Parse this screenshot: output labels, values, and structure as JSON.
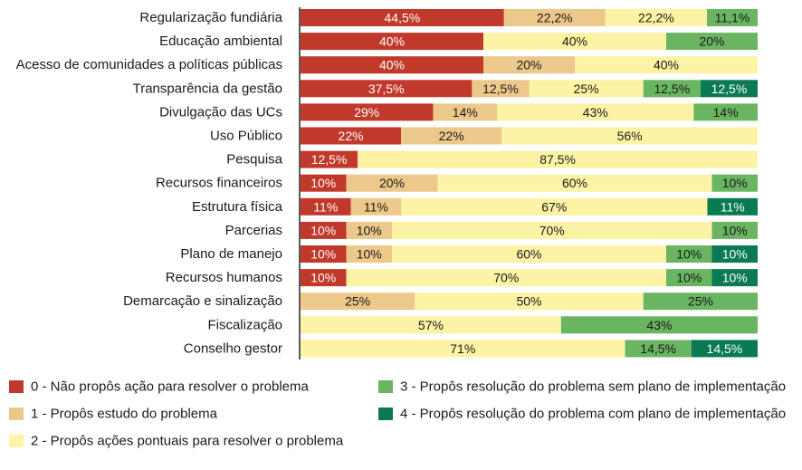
{
  "chart_data": {
    "type": "bar",
    "orientation": "horizontal",
    "stacked": true,
    "normalized_percent": true,
    "categories": [
      "Regularização fundiária",
      "Educação ambiental",
      "Acesso de comunidades a políticas públicas",
      "Transparência da gestão",
      "Divulgação das UCs",
      "Uso Público",
      "Pesquisa",
      "Recursos financeiros",
      "Estrutura física",
      "Parcerias",
      "Plano de manejo",
      "Recursos humanos",
      "Demarcação e sinalização",
      "Fiscalização",
      "Conselho gestor"
    ],
    "series": [
      {
        "name": "0 - Não propôs ação para resolver o problema",
        "color": "#c0392b",
        "values": [
          44.5,
          40,
          40,
          37.5,
          29,
          22,
          12.5,
          10,
          11,
          10,
          10,
          10,
          0,
          0,
          0
        ],
        "labels": [
          "44,5%",
          "40%",
          "40%",
          "37,5%",
          "29%",
          "22%",
          "12,5%",
          "10%",
          "11%",
          "10%",
          "10%",
          "10%",
          "",
          "",
          ""
        ]
      },
      {
        "name": "1 - Propôs estudo do problema",
        "color": "#ecc88a",
        "values": [
          22.2,
          0,
          20,
          12.5,
          14,
          22,
          0,
          20,
          11,
          10,
          10,
          0,
          25,
          0,
          0
        ],
        "labels": [
          "22,2%",
          "",
          "20%",
          "12,5%",
          "14%",
          "22%",
          "",
          "20%",
          "11%",
          "10%",
          "10%",
          "",
          "25%",
          "",
          ""
        ]
      },
      {
        "name": "2 - Propôs ações pontuais para resolver o problema",
        "color": "#fdf3a4",
        "values": [
          22.2,
          40,
          40,
          25,
          43,
          56,
          87.5,
          60,
          67,
          70,
          60,
          70,
          50,
          57,
          71
        ],
        "labels": [
          "22,2%",
          "40%",
          "40%",
          "25%",
          "43%",
          "56%",
          "87,5%",
          "60%",
          "67%",
          "70%",
          "60%",
          "70%",
          "50%",
          "57%",
          "71%"
        ]
      },
      {
        "name": "3 - Propôs resolução do problema sem plano de implementação",
        "color": "#6ab561",
        "values": [
          11.1,
          20,
          0,
          12.5,
          14,
          0,
          0,
          10,
          0,
          10,
          10,
          10,
          25,
          43,
          14.5
        ],
        "labels": [
          "11,1%",
          "20%",
          "",
          "12,5%",
          "14%",
          "",
          "",
          "10%",
          "",
          "10%",
          "10%",
          "10%",
          "25%",
          "43%",
          "14,5%"
        ]
      },
      {
        "name": "4 - Propôs resolução do problema com plano de implementação",
        "color": "#0a7a52",
        "values": [
          0,
          0,
          0,
          12.5,
          0,
          0,
          0,
          0,
          11,
          0,
          10,
          10,
          0,
          0,
          14.5
        ],
        "labels": [
          "",
          "",
          "",
          "12,5%",
          "",
          "",
          "",
          "",
          "11%",
          "",
          "10%",
          "10%",
          "",
          "",
          "14,5%"
        ]
      }
    ],
    "xlim": [
      0,
      100
    ],
    "grid": false,
    "legend_position": "bottom"
  }
}
